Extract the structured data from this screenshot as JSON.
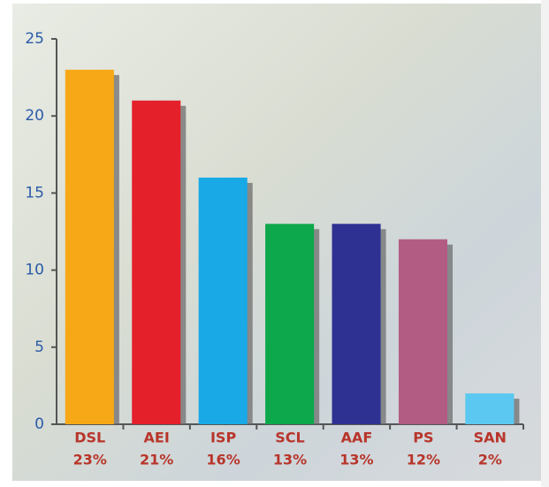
{
  "chart_data": {
    "type": "bar",
    "categories": [
      "DSL",
      "AEI",
      "ISP",
      "SCL",
      "AAF",
      "PS",
      "SAN"
    ],
    "values": [
      23,
      21,
      16,
      13,
      13,
      12,
      2
    ],
    "value_labels": [
      "23%",
      "21%",
      "16%",
      "13%",
      "13%",
      "12%",
      "2%"
    ],
    "colors": [
      "#f7a816",
      "#e4202b",
      "#18a9e6",
      "#0da84b",
      "#2e3192",
      "#b25c84",
      "#5ac8f0"
    ],
    "ylim": [
      0,
      25
    ],
    "yticks": [
      0,
      5,
      10,
      15,
      20,
      25
    ],
    "grid": false
  }
}
